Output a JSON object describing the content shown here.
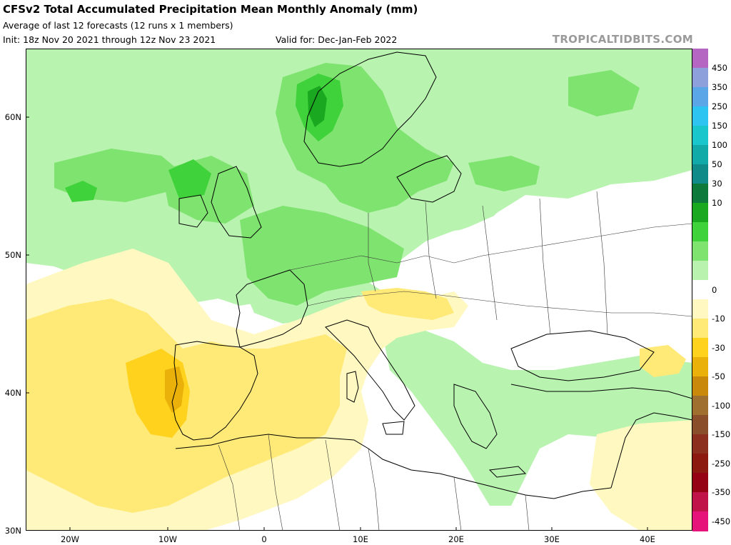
{
  "header": {
    "title": "CFSv2 Total Accumulated Precipitation Mean Monthly Anomaly (mm)",
    "subtitle": "Average of last 12 forecasts (12 runs x 1 members)",
    "init": "Init: 18z Nov 20 2021 through 12z Nov 23 2021",
    "valid": "Valid for: Dec-Jan-Feb 2022",
    "brand": "TROPICALTIDBITS.COM"
  },
  "colorbar": {
    "labels": [
      "450",
      "350",
      "250",
      "150",
      "100",
      "50",
      "30",
      "10",
      "0",
      "-10",
      "-30",
      "-50",
      "-100",
      "-150",
      "-250",
      "-350",
      "-450"
    ],
    "colors": [
      "#b565c2",
      "#8ea0dc",
      "#5aa6e6",
      "#2ec4f2",
      "#18c6cc",
      "#12a9a9",
      "#118a8a",
      "#0d7a3c",
      "#19a81f",
      "#3fd23a",
      "#7fe36f",
      "#b8f2ae",
      "#ffffff",
      "#fff8c0",
      "#ffea78",
      "#ffd21e",
      "#e9b10a",
      "#c98a0c",
      "#9e6f2f",
      "#8a4e2a",
      "#8c2f1e",
      "#8d1a10",
      "#950214",
      "#c0134a",
      "#e6147a"
    ]
  },
  "axes": {
    "lat_labels": [
      "60N",
      "50N",
      "40N",
      "30N"
    ],
    "lon_labels": [
      "20W",
      "10W",
      "0",
      "10E",
      "20E",
      "30E",
      "40E"
    ]
  },
  "colors": {
    "ocean_bg": "#ffffff",
    "wet_light": "#b9f3b0",
    "wet_mid": "#7fe36f",
    "wet_strong": "#3fd23a",
    "wet_max": "#19a81f",
    "dry_light": "#fff8c0",
    "dry_mid": "#ffea78",
    "dry_strong": "#ffd21e",
    "dry_max": "#e9b10a",
    "border": "#000000"
  }
}
